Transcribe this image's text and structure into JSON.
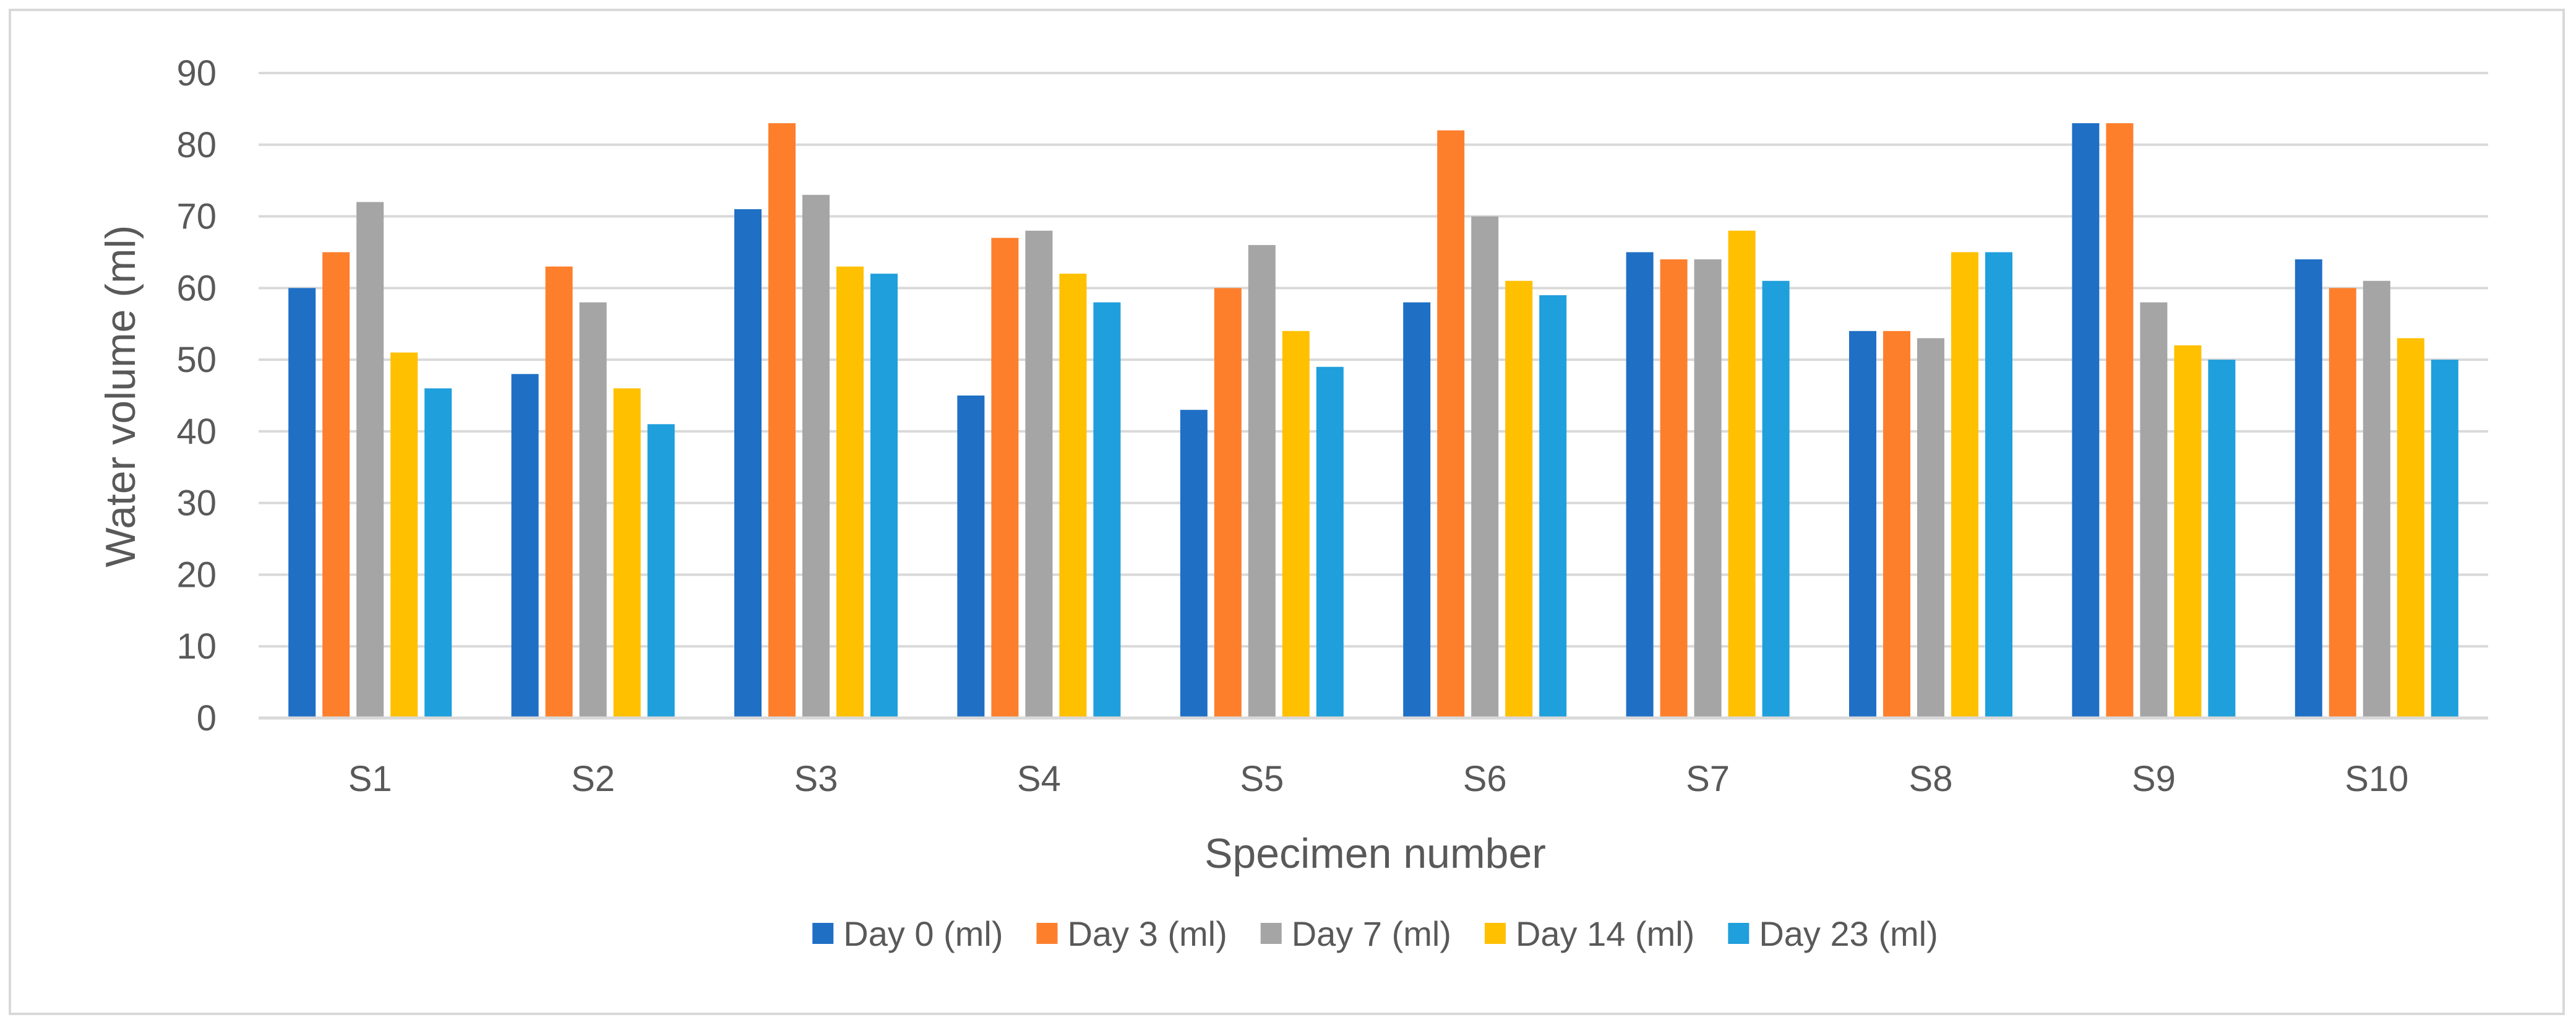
{
  "chart_data": {
    "type": "bar",
    "title": "",
    "xlabel": "Specimen number",
    "ylabel": "Water volume (ml)",
    "ylim": [
      0,
      90
    ],
    "yticks": [
      0,
      10,
      20,
      30,
      40,
      50,
      60,
      70,
      80,
      90
    ],
    "grid": true,
    "legend_position": "bottom",
    "categories": [
      "S1",
      "S2",
      "S3",
      "S4",
      "S5",
      "S6",
      "S7",
      "S8",
      "S9",
      "S10"
    ],
    "series": [
      {
        "name": "Day 0 (ml)",
        "color": "#1f6fc5",
        "values": [
          60,
          48,
          71,
          45,
          43,
          58,
          65,
          54,
          83,
          64
        ]
      },
      {
        "name": "Day 3 (ml)",
        "color": "#fd7f2c",
        "values": [
          65,
          63,
          83,
          67,
          60,
          82,
          64,
          54,
          83,
          60
        ]
      },
      {
        "name": "Day 7 (ml)",
        "color": "#a5a5a5",
        "values": [
          72,
          58,
          73,
          68,
          66,
          70,
          64,
          53,
          58,
          61
        ]
      },
      {
        "name": "Day 14 (ml)",
        "color": "#ffc000",
        "values": [
          51,
          46,
          63,
          62,
          54,
          61,
          68,
          65,
          52,
          53
        ]
      },
      {
        "name": "Day 23 (ml)",
        "color": "#1f9fdc",
        "values": [
          46,
          41,
          62,
          58,
          49,
          59,
          61,
          65,
          50,
          50
        ]
      }
    ]
  }
}
